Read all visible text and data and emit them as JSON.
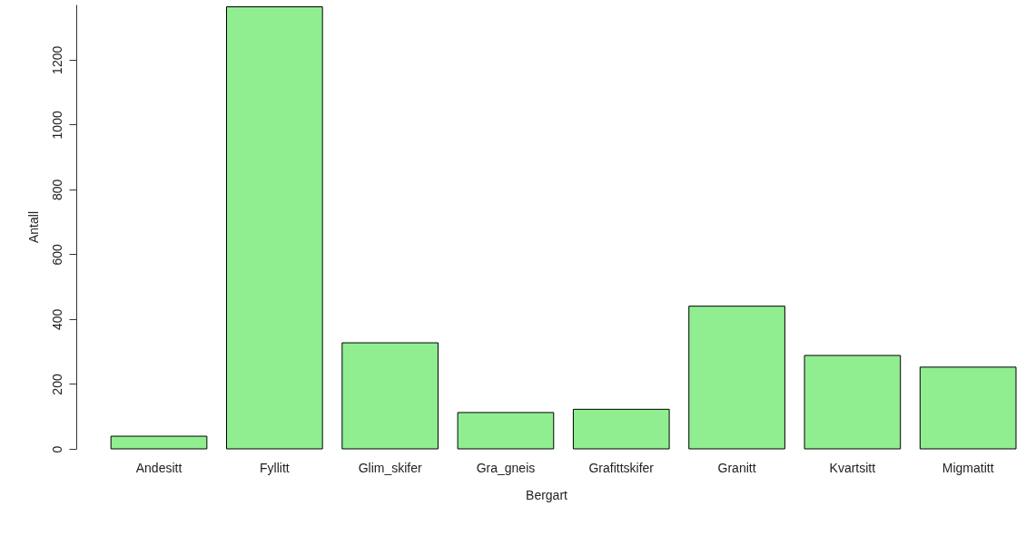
{
  "chart_data": {
    "type": "bar",
    "xlabel": "Bergart",
    "ylabel": "Antall",
    "categories": [
      "Andesitt",
      "Fyllitt",
      "Glim_skifer",
      "Gra_gneis",
      "Grafittskifer",
      "Granitt",
      "Kvartsitt",
      "Migmatitt"
    ],
    "values": [
      39,
      1363,
      327,
      112,
      122,
      440,
      288,
      252
    ],
    "color": "#90ee90",
    "ylim": [
      0,
      1370
    ],
    "yticks": [
      0,
      200,
      400,
      600,
      800,
      1000,
      1200
    ],
    "grid": false
  }
}
